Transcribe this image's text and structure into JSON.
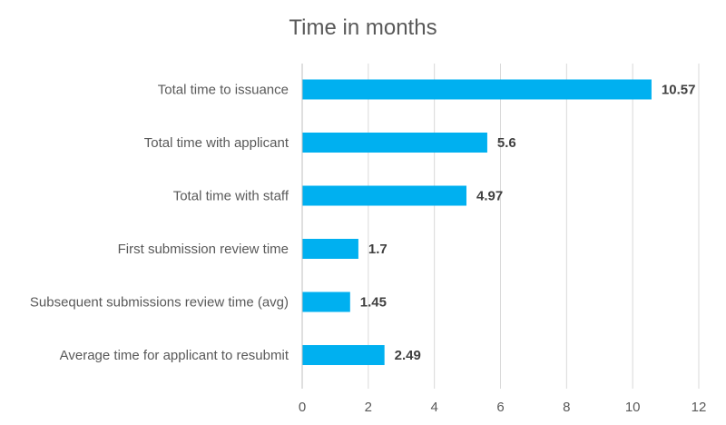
{
  "chart_data": {
    "type": "bar",
    "orientation": "horizontal",
    "title": "Time in months",
    "categories": [
      "Total time to issuance",
      "Total time with applicant",
      "Total time with staff",
      "First submission review time",
      "Subsequent submissions review time (avg)",
      "Average time for applicant to resubmit"
    ],
    "values": [
      10.57,
      5.6,
      4.97,
      1.7,
      1.45,
      2.49
    ],
    "value_labels": [
      "10.57",
      "5.6",
      "4.97",
      "1.7",
      "1.45",
      "2.49"
    ],
    "xlim": [
      0,
      12
    ],
    "xticks": [
      0,
      2,
      4,
      6,
      8,
      10,
      12
    ],
    "xtick_labels": [
      "0",
      "2",
      "4",
      "6",
      "8",
      "10",
      "12"
    ],
    "xlabel": "",
    "ylabel": "",
    "grid": "vertical",
    "legend": "none",
    "bar_color": "#00b0f0"
  }
}
